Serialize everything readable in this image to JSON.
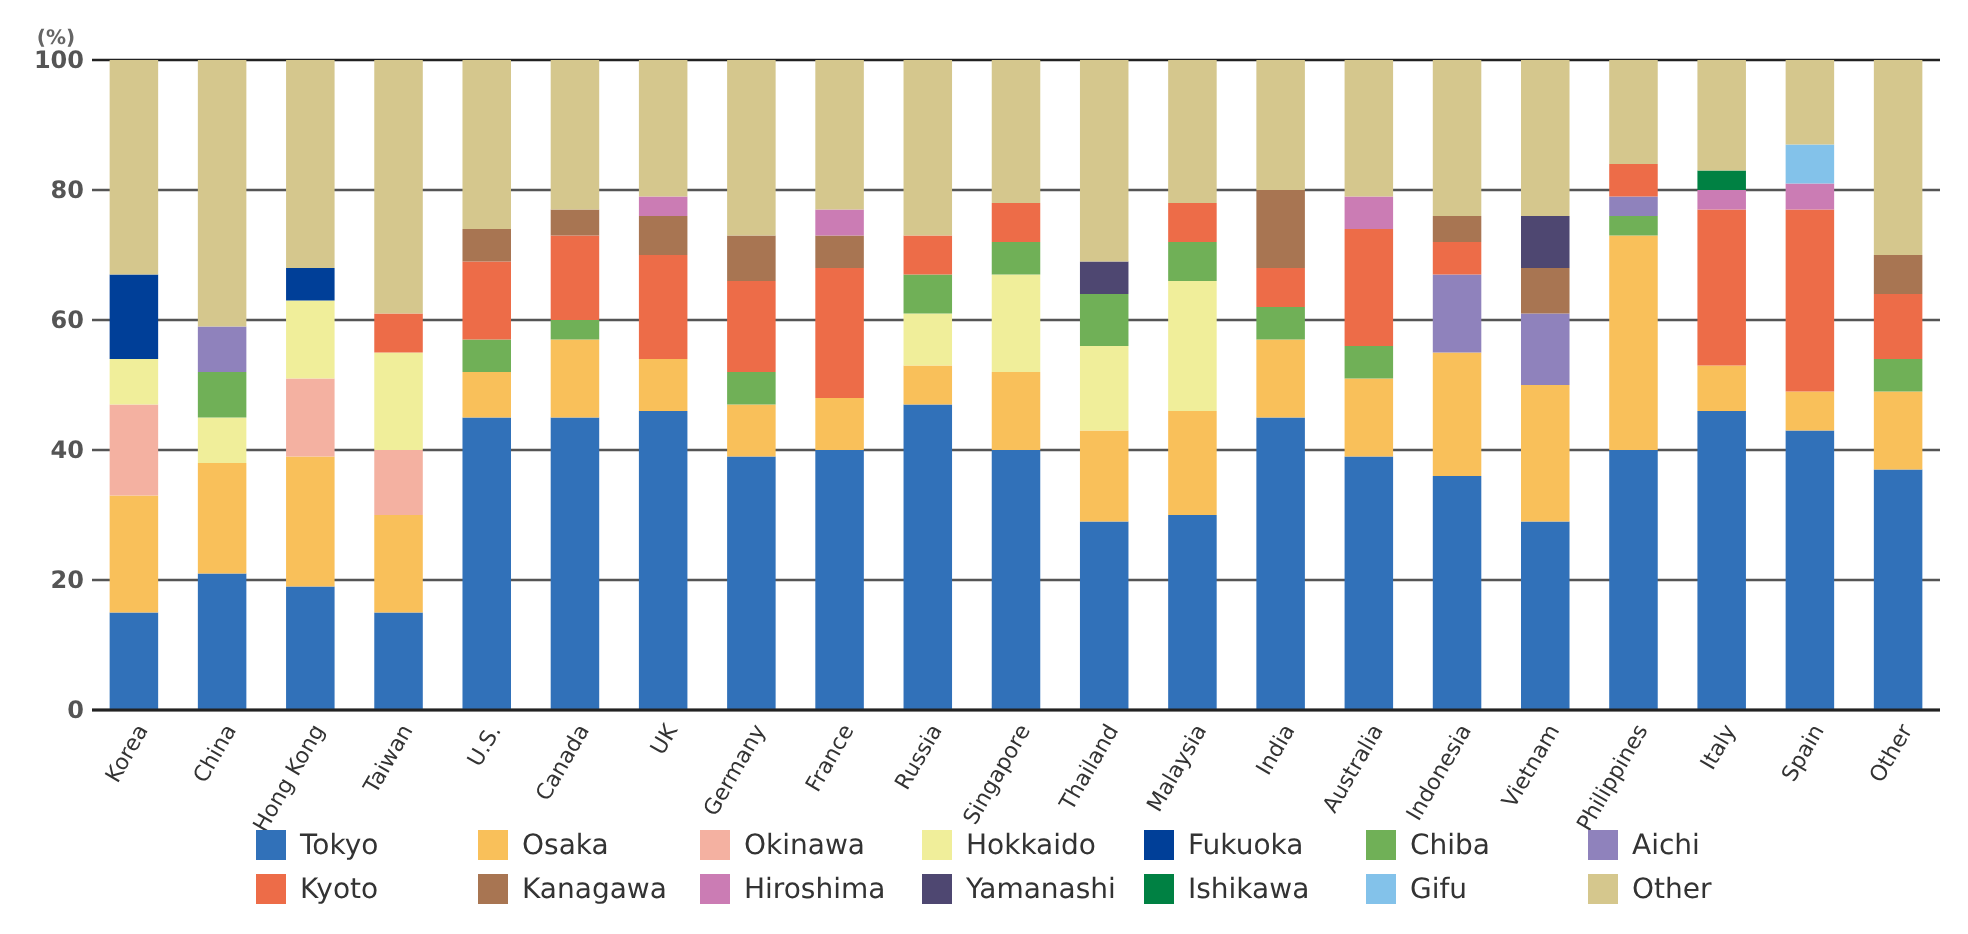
{
  "chart_data": {
    "type": "bar",
    "stacked": true,
    "ylabel": "(%)",
    "ylim": [
      0,
      100
    ],
    "yticks": [
      0,
      20,
      40,
      60,
      80,
      100
    ],
    "grid": "y",
    "legend": "bottom",
    "categories": [
      "Korea",
      "China",
      "Hong Kong",
      "Taiwan",
      "U.S.",
      "Canada",
      "UK",
      "Germany",
      "France",
      "Russia",
      "Singapore",
      "Thailand",
      "Malaysia",
      "India",
      "Australia",
      "Indonesia",
      "Vietnam",
      "Philippines",
      "Italy",
      "Spain",
      "Other"
    ],
    "series": [
      {
        "name": "Tokyo",
        "color": "#3171b9",
        "values": [
          15,
          21,
          19,
          15,
          45,
          45,
          46,
          39,
          40,
          47,
          40,
          29,
          30,
          45,
          39,
          36,
          29,
          40,
          46,
          43,
          37
        ]
      },
      {
        "name": "Osaka",
        "color": "#f9c05a",
        "values": [
          18,
          17,
          20,
          15,
          7,
          12,
          8,
          8,
          8,
          6,
          12,
          14,
          16,
          12,
          12,
          19,
          21,
          33,
          7,
          6,
          12
        ]
      },
      {
        "name": "Okinawa",
        "color": "#f4b1a1",
        "values": [
          14,
          null,
          12,
          10,
          null,
          null,
          null,
          null,
          null,
          null,
          null,
          null,
          null,
          null,
          null,
          null,
          null,
          null,
          null,
          null,
          null
        ]
      },
      {
        "name": "Hokkaido",
        "color": "#f0ee9a",
        "values": [
          7,
          7,
          12,
          15,
          null,
          null,
          null,
          null,
          null,
          8,
          15,
          13,
          20,
          null,
          null,
          null,
          null,
          null,
          null,
          null,
          null
        ]
      },
      {
        "name": "Fukuoka",
        "color": "#003f98",
        "values": [
          13,
          null,
          5,
          null,
          null,
          null,
          null,
          null,
          null,
          null,
          null,
          null,
          null,
          null,
          null,
          null,
          null,
          null,
          null,
          null,
          null
        ]
      },
      {
        "name": "Chiba",
        "color": "#70b057",
        "values": [
          null,
          7,
          null,
          null,
          5,
          3,
          null,
          5,
          null,
          6,
          5,
          8,
          6,
          5,
          5,
          null,
          null,
          3,
          null,
          null,
          5
        ]
      },
      {
        "name": "Aichi",
        "color": "#8f82bc",
        "values": [
          null,
          7,
          null,
          null,
          null,
          null,
          null,
          null,
          null,
          null,
          null,
          null,
          null,
          null,
          null,
          12,
          11,
          3,
          null,
          null,
          null
        ]
      },
      {
        "name": "Kyoto",
        "color": "#ed6c48",
        "values": [
          null,
          null,
          null,
          6,
          12,
          13,
          16,
          14,
          20,
          6,
          6,
          null,
          6,
          6,
          18,
          5,
          null,
          5,
          24,
          28,
          10
        ]
      },
      {
        "name": "Kanagawa",
        "color": "#a87552",
        "values": [
          null,
          null,
          null,
          null,
          5,
          4,
          6,
          7,
          5,
          null,
          null,
          null,
          null,
          12,
          null,
          4,
          7,
          null,
          null,
          null,
          6
        ]
      },
      {
        "name": "Hiroshima",
        "color": "#cb7cb4",
        "values": [
          null,
          null,
          null,
          null,
          null,
          null,
          3,
          null,
          4,
          null,
          null,
          null,
          null,
          null,
          5,
          null,
          null,
          null,
          3,
          4,
          null
        ]
      },
      {
        "name": "Yamanashi",
        "color": "#4e4771",
        "values": [
          null,
          null,
          null,
          null,
          null,
          null,
          null,
          null,
          null,
          null,
          null,
          5,
          null,
          null,
          null,
          null,
          8,
          null,
          null,
          null,
          null
        ]
      },
      {
        "name": "Ishikawa",
        "color": "#008143",
        "values": [
          null,
          null,
          null,
          null,
          null,
          null,
          null,
          null,
          null,
          null,
          null,
          null,
          null,
          null,
          null,
          null,
          null,
          null,
          3,
          null,
          null
        ]
      },
      {
        "name": "Gifu",
        "color": "#83c2ea",
        "values": [
          null,
          null,
          null,
          null,
          null,
          null,
          null,
          null,
          null,
          null,
          null,
          null,
          null,
          null,
          null,
          null,
          null,
          null,
          null,
          6,
          null
        ]
      },
      {
        "name": "Other",
        "color": "#d5c78d",
        "values": [
          33,
          41,
          32,
          39,
          26,
          23,
          21,
          27,
          23,
          27,
          22,
          31,
          22,
          20,
          21,
          24,
          24,
          16,
          17,
          13,
          30
        ]
      }
    ]
  }
}
